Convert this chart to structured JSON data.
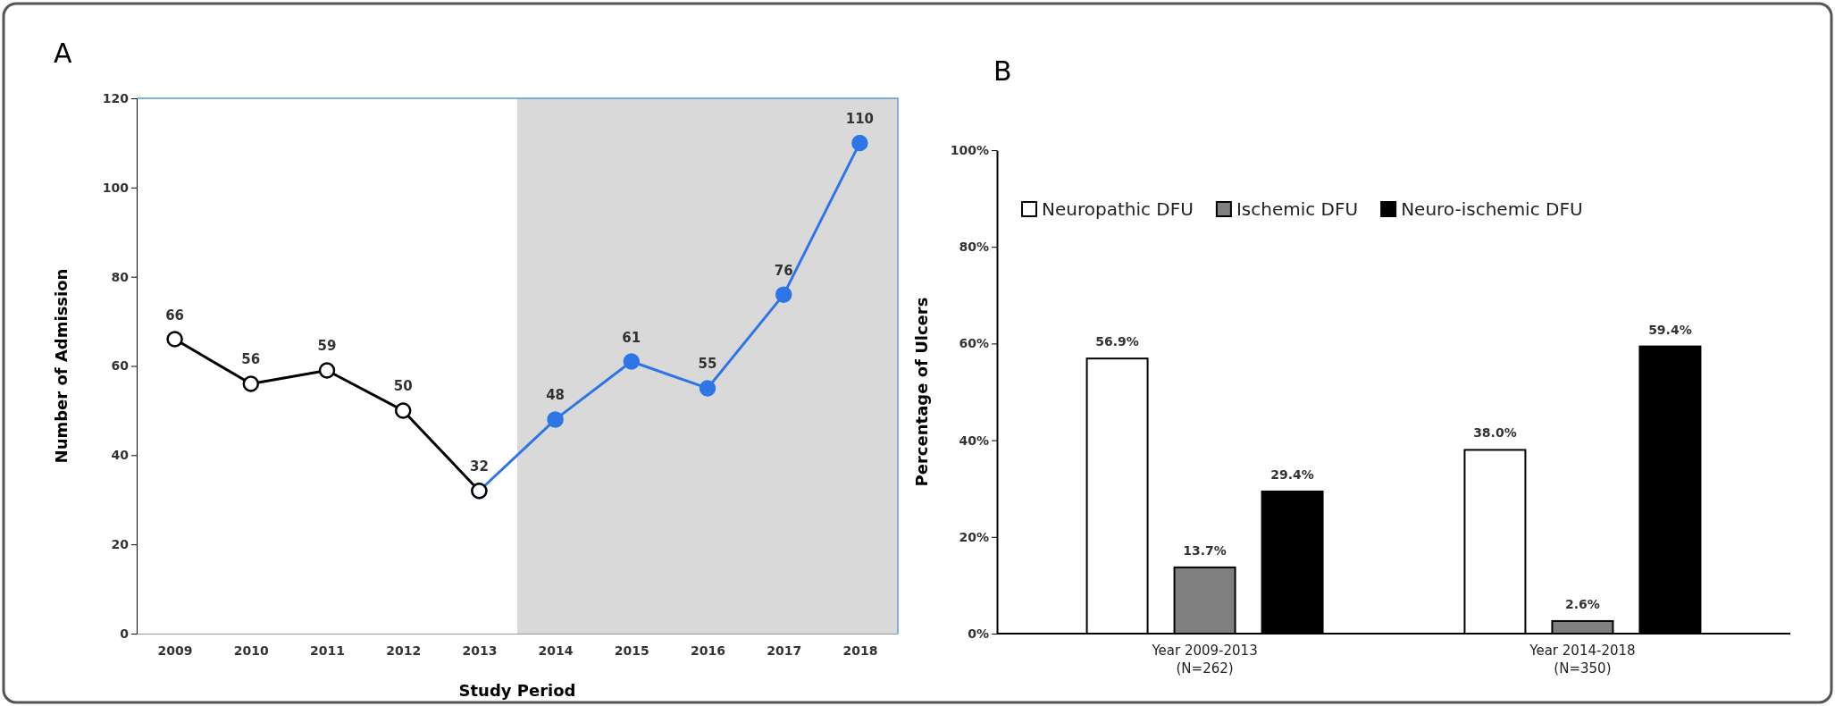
{
  "chart_data": [
    {
      "type": "line",
      "title": "A",
      "xlabel": "Study Period",
      "ylabel": "Number of Admission",
      "xlim": [
        2008.5,
        2018.5
      ],
      "xticks": [
        2009,
        2010,
        2011,
        2012,
        2013,
        2014,
        2015,
        2016,
        2017,
        2018
      ],
      "ylim": [
        0,
        120
      ],
      "yticks": [
        0,
        20,
        40,
        60,
        80,
        100,
        120
      ],
      "grid": false,
      "marker": "circle",
      "data_labels": true,
      "bands": [
        {
          "axis": "x",
          "from": 2013.5,
          "to": 2018.5,
          "color": "#d9d9d9"
        }
      ],
      "series": [
        {
          "color": "#2e75e6",
          "x": [
            2013,
            2014,
            2015,
            2016,
            2017,
            2018
          ],
          "values": [
            32,
            48,
            61,
            55,
            76,
            110
          ],
          "value_labels": [
            null,
            "48",
            "61",
            "55",
            "76",
            "110"
          ]
        },
        {
          "color": "#000000",
          "x": [
            2009,
            2010,
            2011,
            2012,
            2013
          ],
          "values": [
            66,
            56,
            59,
            50,
            32
          ]
        }
      ]
    },
    {
      "type": "bar",
      "title": "B",
      "ylabel": "Percentage of Ulcers",
      "categories": [
        "Year 2009-2013\n(N=262)",
        "Year 2014-2018\n(N=350)"
      ],
      "ylim": [
        0,
        100
      ],
      "yticks": [
        {
          "value": 0,
          "label": "0%"
        },
        {
          "value": 20,
          "label": "20%"
        },
        {
          "value": 40,
          "label": "40%"
        },
        {
          "value": 60,
          "label": "60%"
        },
        {
          "value": 80,
          "label": "80%"
        },
        {
          "value": 100,
          "label": "100%"
        }
      ],
      "grid": false,
      "legend": "top",
      "series": [
        {
          "name": "Neuropathic DFU",
          "color": "#ffffff",
          "values": [
            56.9,
            38.0
          ],
          "value_labels": [
            "56.9%",
            "38.0%"
          ]
        },
        {
          "name": "Ischemic DFU",
          "color": "#808080",
          "values": [
            13.7,
            2.6
          ],
          "value_labels": [
            "13.7%",
            "2.6%"
          ]
        },
        {
          "name": "Neuro-ischemic DFU",
          "color": "#000000",
          "values": [
            29.4,
            59.4
          ],
          "value_labels": [
            "29.4%",
            "59.4%"
          ]
        }
      ]
    }
  ]
}
